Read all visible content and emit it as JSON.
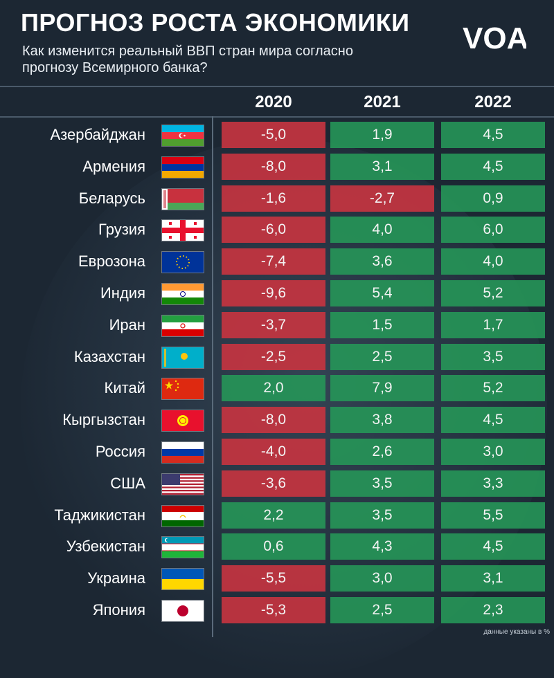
{
  "header": {
    "title": "ПРОГНОЗ РОСТА ЭКОНОМИКИ",
    "subtitle": "Как изменится реальный ВВП стран мира согласно прогнозу Всемирного банка?",
    "logo_text": "VOA"
  },
  "footnote": "данные указаны в %",
  "colors": {
    "background": "#1c2733",
    "negative": "#c43440",
    "positive": "#269658",
    "text": "#ffffff"
  },
  "chart_data": {
    "type": "table",
    "title": "ПРОГНОЗ РОСТА ЭКОНОМИКИ",
    "subtitle": "Как изменится реальный ВВП стран мира согласно прогнозу Всемирного банка?",
    "columns": [
      "2020",
      "2021",
      "2022"
    ],
    "rows": [
      {
        "country": "Азербайджан",
        "flag": "azerbaijan-flag",
        "values": [
          "-5,0",
          "1,9",
          "4,5"
        ]
      },
      {
        "country": "Армения",
        "flag": "armenia-flag",
        "values": [
          "-8,0",
          "3,1",
          "4,5"
        ]
      },
      {
        "country": "Беларусь",
        "flag": "belarus-flag",
        "values": [
          "-1,6",
          "-2,7",
          "0,9"
        ]
      },
      {
        "country": "Грузия",
        "flag": "georgia-flag",
        "values": [
          "-6,0",
          "4,0",
          "6,0"
        ]
      },
      {
        "country": "Еврозона",
        "flag": "eu-flag",
        "values": [
          "-7,4",
          "3,6",
          "4,0"
        ]
      },
      {
        "country": "Индия",
        "flag": "india-flag",
        "values": [
          "-9,6",
          "5,4",
          "5,2"
        ]
      },
      {
        "country": "Иран",
        "flag": "iran-flag",
        "values": [
          "-3,7",
          "1,5",
          "1,7"
        ]
      },
      {
        "country": "Казахстан",
        "flag": "kazakhstan-flag",
        "values": [
          "-2,5",
          "2,5",
          "3,5"
        ]
      },
      {
        "country": "Китай",
        "flag": "china-flag",
        "values": [
          "2,0",
          "7,9",
          "5,2"
        ]
      },
      {
        "country": "Кыргызстан",
        "flag": "kyrgyzstan-flag",
        "values": [
          "-8,0",
          "3,8",
          "4,5"
        ]
      },
      {
        "country": "Россия",
        "flag": "russia-flag",
        "values": [
          "-4,0",
          "2,6",
          "3,0"
        ]
      },
      {
        "country": "США",
        "flag": "usa-flag",
        "values": [
          "-3,6",
          "3,5",
          "3,3"
        ]
      },
      {
        "country": "Таджикистан",
        "flag": "tajikistan-flag",
        "values": [
          "2,2",
          "3,5",
          "5,5"
        ]
      },
      {
        "country": "Узбекистан",
        "flag": "uzbekistan-flag",
        "values": [
          "0,6",
          "4,3",
          "4,5"
        ]
      },
      {
        "country": "Украина",
        "flag": "ukraine-flag",
        "values": [
          "-5,5",
          "3,0",
          "3,1"
        ]
      },
      {
        "country": "Япония",
        "flag": "japan-flag",
        "values": [
          "-5,3",
          "2,5",
          "2,3"
        ]
      }
    ]
  }
}
